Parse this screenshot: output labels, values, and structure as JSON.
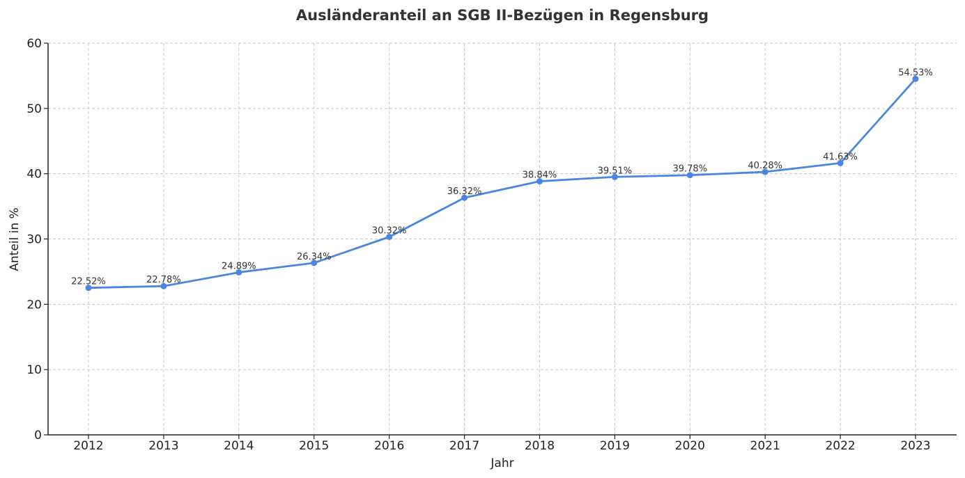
{
  "chart_data": {
    "type": "line",
    "title": "Ausländeranteil an SGB II-Bezügen in Regensburg",
    "xlabel": "Jahr",
    "ylabel": "Anteil in %",
    "x": [
      "2012",
      "2013",
      "2014",
      "2015",
      "2016",
      "2017",
      "2018",
      "2019",
      "2020",
      "2021",
      "2022",
      "2023"
    ],
    "series": [
      {
        "values": [
          22.52,
          22.78,
          24.89,
          26.34,
          30.32,
          36.32,
          38.84,
          39.51,
          39.78,
          40.28,
          41.63,
          54.53
        ],
        "data_labels": [
          "22.52%",
          "22.78%",
          "24.89%",
          "26.34%",
          "30.32%",
          "36.32%",
          "38.84%",
          "39.51%",
          "39.78%",
          "40.28%",
          "41.63%",
          "54.53%"
        ],
        "color": "#4a86e0"
      }
    ],
    "ylim": [
      0,
      60
    ],
    "yticks": [
      "0",
      "10",
      "20",
      "30",
      "40",
      "50",
      "60"
    ],
    "grid": true
  }
}
